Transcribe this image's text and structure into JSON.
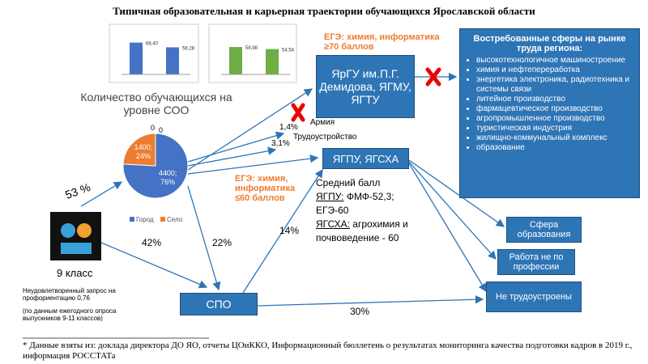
{
  "header": {
    "title": "Типичная образовательная и карьерная траектории обучающихся Ярославской области"
  },
  "mini_charts": [
    {
      "ylim": [
        0,
        80
      ],
      "values": [
        68.4,
        58.28
      ],
      "value_labels": [
        "68,40",
        "58,28"
      ],
      "color": "#4472c4"
    },
    {
      "ylim": [
        0,
        80
      ],
      "values": [
        58.98,
        54.54
      ],
      "value_labels": [
        "58,98",
        "54,54"
      ],
      "color": "#70ad47"
    }
  ],
  "pie": {
    "title": "Количество обучающихся на уровне СОО",
    "values": [
      4400,
      1400
    ],
    "value_labels": [
      "4400;",
      "1400;"
    ],
    "percent_labels": [
      "76%",
      "24%"
    ],
    "legend": [
      "Город",
      "Село"
    ],
    "colors": [
      "#4472c4",
      "#ed7d31"
    ],
    "zero_labels": [
      "0",
      "0"
    ]
  },
  "start": {
    "label": "9 класс",
    "share_soo": "53 %",
    "share_spo": "42%"
  },
  "notes": [
    "Неудовлетворенный запрос на профориентацию 0,76",
    "(по данным ежегодного опроса выпускников 9-11 классов)"
  ],
  "nodes": {
    "spo": "СПО",
    "yargu": "ЯрГУ им.П.Г. Демидова, ЯГМУ, ЯГТУ",
    "yagpu": "ЯГПУ, ЯГСХА",
    "edu": "Сфера образования",
    "other": "Работа не по профессии",
    "unemployed": "Не трудоустроены"
  },
  "conditions": {
    "high": "ЕГЭ: химия, информатика ≥70 баллов",
    "low": "ЕГЭ: химия, информатика ≤60 баллов"
  },
  "scores": {
    "head": "Средний балл",
    "l1u": "ЯГПУ:",
    "l1": " ФМФ-52,3; ЕГЭ-60",
    "l2u": "ЯГСХА:",
    "l2": " агрохимия и почвоведение - 60"
  },
  "edges": {
    "army": "Армия",
    "army_share": "1,4%",
    "job": "Трудоустройство",
    "job_share": "3,1%",
    "spo_share": "22%",
    "spo_uni": "14%",
    "spo_unemployed": "30%"
  },
  "market": {
    "title": "Востребованные сферы на рынке труда региона:",
    "items": [
      "высокотехнологичное машиностроение",
      "химия и нефтепереработка",
      "энергетика электроника, радиотехника и системы связи",
      "литейное производство",
      "фармацевтическое производство",
      "агропромышленное производство",
      "туристическая индустрия",
      "жилищно-коммунальный комплекс",
      "образование"
    ]
  },
  "footnote": "* Данные взяты из: доклада директора ДО ЯО, отчеты ЦОиККО, Информационный бюллетень о результатах мониторинга качества подготовки кадров в 2019 г., информация РОССТАТа"
}
